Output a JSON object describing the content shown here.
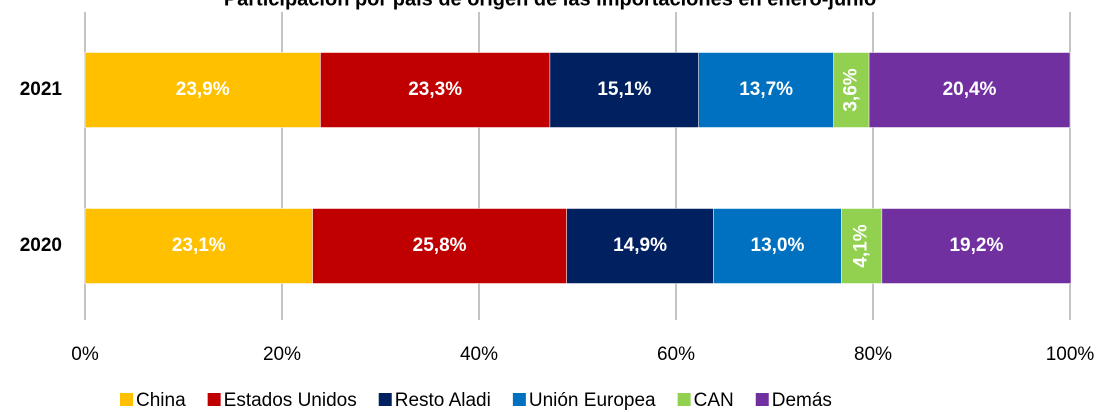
{
  "chart_data": {
    "type": "stacked-bar-horizontal",
    "title": "Participación por país de origen de las importaciones en enero-junio",
    "categories": [
      "2021",
      "2020"
    ],
    "series": [
      {
        "name": "China",
        "color": "#FFC000",
        "values": [
          23.9,
          23.1
        ],
        "value_labels": [
          "23,9%",
          "23,1%"
        ]
      },
      {
        "name": "Estados Unidos",
        "color": "#C00000",
        "values": [
          23.3,
          25.8
        ],
        "value_labels": [
          "23,3%",
          "25,8%"
        ]
      },
      {
        "name": "Resto Aladi",
        "color": "#002060",
        "values": [
          15.1,
          14.9
        ],
        "value_labels": [
          "15,1%",
          "14,9%"
        ]
      },
      {
        "name": "Unión Europea",
        "color": "#0070C0",
        "values": [
          13.7,
          13.0
        ],
        "value_labels": [
          "13,7%",
          "13,0%"
        ]
      },
      {
        "name": "CAN",
        "color": "#92D050",
        "values": [
          3.6,
          4.1
        ],
        "value_labels": [
          "3,6%",
          "4,1%"
        ]
      },
      {
        "name": "Demás",
        "color": "#7030A0",
        "values": [
          20.4,
          19.2
        ],
        "value_labels": [
          "20,4%",
          "19,2%"
        ]
      }
    ],
    "xlim": [
      0,
      100
    ],
    "xticks": [
      {
        "value": 0,
        "label": "0%"
      },
      {
        "value": 20,
        "label": "20%"
      },
      {
        "value": 40,
        "label": "40%"
      },
      {
        "value": 60,
        "label": "60%"
      },
      {
        "value": 80,
        "label": "80%"
      },
      {
        "value": 100,
        "label": "100%"
      }
    ],
    "grid": true,
    "legend": "bottom"
  }
}
